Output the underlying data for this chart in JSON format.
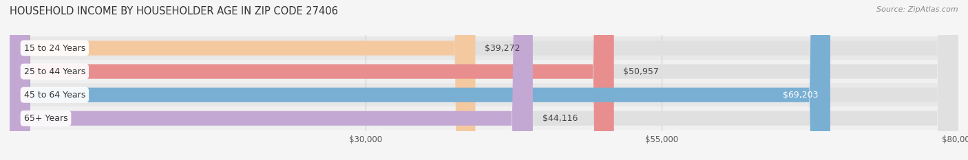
{
  "title": "HOUSEHOLD INCOME BY HOUSEHOLDER AGE IN ZIP CODE 27406",
  "source": "Source: ZipAtlas.com",
  "categories": [
    "15 to 24 Years",
    "25 to 44 Years",
    "45 to 64 Years",
    "65+ Years"
  ],
  "values": [
    39272,
    50957,
    69203,
    44116
  ],
  "bar_colors": [
    "#f5c9a0",
    "#e88e8e",
    "#7aafd4",
    "#c4a8d4"
  ],
  "x_min": 0,
  "x_max": 80000,
  "x_ticks": [
    30000,
    55000,
    80000
  ],
  "x_tick_labels": [
    "$30,000",
    "$55,000",
    "$80,000"
  ],
  "bar_bg_color": "#e8e8e8",
  "label_fontsize": 9,
  "title_fontsize": 10.5,
  "fig_width": 14.06,
  "fig_height": 2.33,
  "background_color": "#f5f5f5",
  "inside_label_threshold": 65000
}
